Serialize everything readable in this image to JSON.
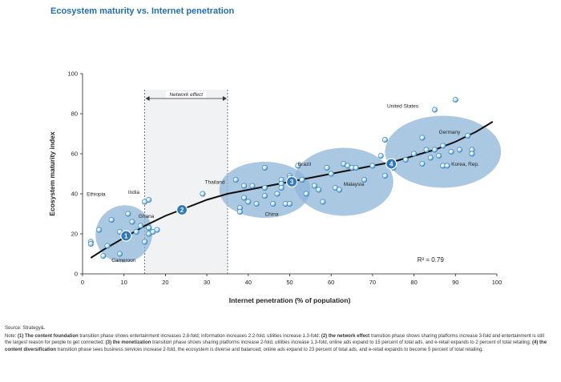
{
  "title": "Ecosystem maturity vs. Internet penetration",
  "source": "Source: Strategy&.",
  "note": {
    "lead": "Note: ",
    "p1_bold": "(1) The content foundation",
    "p1_rest": " transition phase shows entertainment increases 2.8-fold; information increases 2.2-fold, utilities increase 1.3-fold; ",
    "p2_bold": "(2) the network effect",
    "p2_rest": " transition phase shows sharing platforms increase 3-fold and entertainment is still the largest reason for people to get connected; ",
    "p3_bold": "(3) the monetization",
    "p3_rest": " transition phase shows sharing platforms increase 2-fold, utilities increase 1.3-fold, online ads expand to 15 percent of total ads, and e-retail expands to 2 percent of total retailing; ",
    "p4_bold": "(4) the content diversification",
    "p4_rest": " transition phase sees business services increase 2-fold, the ecosystem is diverse and balanced, online ads expand to 23 percent of total ads, and e-retail expands to become 5 percent of total retailing."
  },
  "chart_data": {
    "type": "scatter",
    "xlabel": "Internet penetration (% of population)",
    "ylabel": "Ecosystem maturity index",
    "xlim": [
      0,
      100
    ],
    "ylim": [
      0,
      100
    ],
    "xticks": [
      "0",
      "10",
      "20",
      "30",
      "40",
      "50",
      "60",
      "70",
      "80",
      "90",
      "100"
    ],
    "yticks": [
      "0",
      "20",
      "40",
      "60",
      "80",
      "100"
    ],
    "grid": false,
    "r2_label": "R² = 0.79",
    "band": {
      "label": "Network effect",
      "x_start": 15,
      "x_end": 35
    },
    "trend_line": [
      [
        2,
        8
      ],
      [
        5,
        12
      ],
      [
        10,
        18
      ],
      [
        15,
        24
      ],
      [
        20,
        29
      ],
      [
        25,
        33
      ],
      [
        30,
        37
      ],
      [
        35,
        40
      ],
      [
        40,
        42
      ],
      [
        45,
        44
      ],
      [
        50,
        46
      ],
      [
        55,
        48
      ],
      [
        60,
        50
      ],
      [
        65,
        52
      ],
      [
        70,
        54
      ],
      [
        75,
        56
      ],
      [
        80,
        59
      ],
      [
        85,
        62
      ],
      [
        90,
        66
      ],
      [
        95,
        71
      ],
      [
        99,
        76
      ]
    ],
    "phase_markers": [
      {
        "label": "1",
        "x": 10.5,
        "y": 19
      },
      {
        "label": "2",
        "x": 24,
        "y": 32
      },
      {
        "label": "3",
        "x": 50.5,
        "y": 46
      },
      {
        "label": "4",
        "x": 74.5,
        "y": 55
      }
    ],
    "clusters": [
      {
        "cx": 10,
        "cy": 20,
        "rx": 7,
        "ry": 14,
        "rotate": -50
      },
      {
        "cx": 44,
        "cy": 42,
        "rx": 11,
        "ry": 14,
        "rotate": 0
      },
      {
        "cx": 63,
        "cy": 46,
        "rx": 12,
        "ry": 17,
        "rotate": 0
      },
      {
        "cx": 87,
        "cy": 61,
        "rx": 14,
        "ry": 18,
        "rotate": 0
      }
    ],
    "points": [
      [
        2,
        16
      ],
      [
        2,
        15
      ],
      [
        4,
        22
      ],
      [
        5,
        9
      ],
      [
        6,
        14
      ],
      [
        7,
        27
      ],
      [
        9,
        21
      ],
      [
        9,
        10
      ],
      [
        10,
        18
      ],
      [
        11,
        30
      ],
      [
        12,
        26
      ],
      [
        13,
        21
      ],
      [
        14,
        24
      ],
      [
        15,
        36
      ],
      [
        16,
        37
      ],
      [
        16,
        23
      ],
      [
        16,
        20
      ],
      [
        15,
        16
      ],
      [
        17,
        21
      ],
      [
        18,
        22
      ],
      [
        29,
        40
      ],
      [
        37,
        47
      ],
      [
        38,
        33
      ],
      [
        39,
        44
      ],
      [
        39,
        38
      ],
      [
        38,
        31
      ],
      [
        40,
        36
      ],
      [
        41,
        44
      ],
      [
        42,
        35
      ],
      [
        44,
        53
      ],
      [
        44,
        43
      ],
      [
        44,
        39
      ],
      [
        46,
        35
      ],
      [
        47,
        40
      ],
      [
        48,
        47
      ],
      [
        48,
        45
      ],
      [
        48,
        43
      ],
      [
        49,
        35
      ],
      [
        50,
        35
      ],
      [
        50,
        49
      ],
      [
        50,
        48
      ],
      [
        52,
        54
      ],
      [
        53,
        47
      ],
      [
        54,
        40
      ],
      [
        56,
        44
      ],
      [
        57,
        42
      ],
      [
        58,
        36
      ],
      [
        59,
        53
      ],
      [
        60,
        50
      ],
      [
        61,
        43
      ],
      [
        62,
        42
      ],
      [
        63,
        55
      ],
      [
        64,
        54
      ],
      [
        65,
        53
      ],
      [
        66,
        53
      ],
      [
        68,
        47
      ],
      [
        70,
        54
      ],
      [
        72,
        59
      ],
      [
        73,
        49
      ],
      [
        73,
        67
      ],
      [
        75,
        53
      ],
      [
        78,
        57
      ],
      [
        80,
        60
      ],
      [
        82,
        55
      ],
      [
        82,
        68
      ],
      [
        83,
        62
      ],
      [
        84,
        58
      ],
      [
        85,
        62
      ],
      [
        85,
        82
      ],
      [
        86,
        59
      ],
      [
        87,
        54
      ],
      [
        87,
        64
      ],
      [
        88,
        54
      ],
      [
        89,
        61
      ],
      [
        90,
        87
      ],
      [
        91,
        62
      ],
      [
        93,
        69
      ],
      [
        94,
        62
      ],
      [
        94,
        60
      ]
    ],
    "labels": [
      {
        "text": "Ethiopia",
        "x": 1,
        "y": 39
      },
      {
        "text": "India",
        "x": 11,
        "y": 40
      },
      {
        "text": "Ghana",
        "x": 13.5,
        "y": 28
      },
      {
        "text": "Cameroon",
        "x": 7,
        "y": 6
      },
      {
        "text": "Thailand",
        "x": 29.5,
        "y": 45
      },
      {
        "text": "China",
        "x": 44,
        "y": 29
      },
      {
        "text": "Brazil",
        "x": 52,
        "y": 54
      },
      {
        "text": "Malaysia",
        "x": 63,
        "y": 44
      },
      {
        "text": "United States",
        "x": 73.5,
        "y": 83
      },
      {
        "text": "Germany",
        "x": 86,
        "y": 70
      },
      {
        "text": "Korea, Rep.",
        "x": 89,
        "y": 54
      }
    ]
  }
}
